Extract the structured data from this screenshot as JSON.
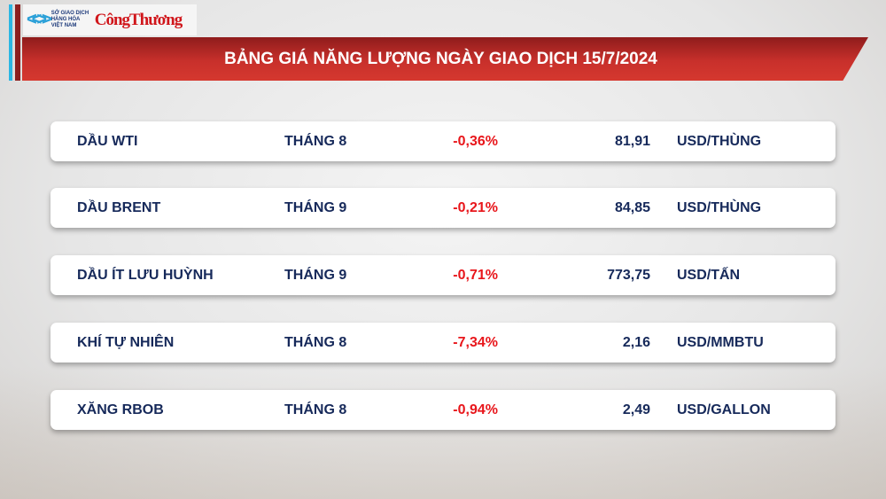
{
  "header": {
    "logo_exchange": "SỞ GIAO DỊCH HÀNG HÓA VIỆT NAM",
    "logo_paper": "CôngThương",
    "title": "BẢNG GIÁ NĂNG LƯỢNG NGÀY GIAO DỊCH 15/7/2024"
  },
  "colors": {
    "banner": "#c8302b",
    "text": "#16295a",
    "negative": "#e8161b"
  },
  "rows": [
    {
      "name": "DẦU WTI",
      "month": "THÁNG 8",
      "change": "-0,36%",
      "price": "81,91",
      "unit": "USD/THÙNG"
    },
    {
      "name": "DẦU BRENT",
      "month": "THÁNG 9",
      "change": "-0,21%",
      "price": "84,85",
      "unit": "USD/THÙNG"
    },
    {
      "name": "DẦU ÍT LƯU HUỲNH",
      "month": "THÁNG 9",
      "change": "-0,71%",
      "price": "773,75",
      "unit": "USD/TẤN"
    },
    {
      "name": "KHÍ TỰ NHIÊN",
      "month": "THÁNG 8",
      "change": "-7,34%",
      "price": "2,16",
      "unit": "USD/MMBTU"
    },
    {
      "name": "XĂNG RBOB",
      "month": "THÁNG 8",
      "change": "-0,94%",
      "price": "2,49",
      "unit": "USD/GALLON"
    }
  ]
}
